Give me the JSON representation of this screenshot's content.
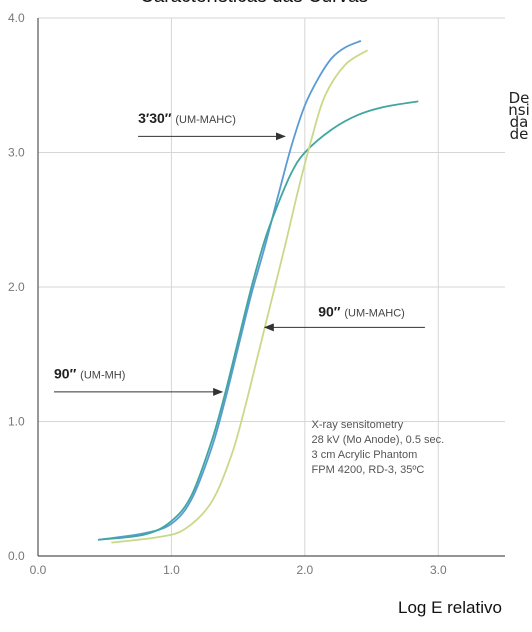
{
  "chart_data": {
    "type": "line",
    "title": "Características das Curvas",
    "xlabel": "Log E relativo",
    "ylabel": "Densidade",
    "xlim": [
      0,
      3.5
    ],
    "ylim": [
      0,
      4.0
    ],
    "x_ticks": [
      "0.0",
      "1.0",
      "2.0",
      "3.0"
    ],
    "y_ticks": [
      "0.0",
      "1.0",
      "2.0",
      "3.0",
      "4.0"
    ],
    "grid": true,
    "colors": {
      "blue": "#5b9bd5",
      "teal": "#3fa6a0",
      "yellow": "#c9d98a",
      "grid": "#d6d6d6"
    },
    "series": [
      {
        "color": "#5b9bd5",
        "x": [
          0.45,
          0.8,
          1.0,
          1.15,
          1.3,
          1.4,
          1.5,
          1.6,
          1.7,
          1.8,
          1.9,
          2.0,
          2.1,
          2.2,
          2.3,
          2.42
        ],
        "y": [
          0.12,
          0.17,
          0.24,
          0.42,
          0.8,
          1.15,
          1.55,
          1.95,
          2.3,
          2.68,
          3.05,
          3.35,
          3.55,
          3.7,
          3.78,
          3.83
        ]
      },
      {
        "color": "#3fa6a0",
        "x": [
          0.45,
          0.8,
          1.0,
          1.15,
          1.3,
          1.4,
          1.5,
          1.6,
          1.7,
          1.8,
          1.9,
          2.0,
          2.2,
          2.4,
          2.6,
          2.85
        ],
        "y": [
          0.12,
          0.16,
          0.26,
          0.45,
          0.85,
          1.2,
          1.6,
          2.0,
          2.35,
          2.62,
          2.85,
          3.0,
          3.17,
          3.28,
          3.34,
          3.38
        ]
      },
      {
        "color": "#c9d98a",
        "x": [
          0.55,
          0.9,
          1.1,
          1.3,
          1.45,
          1.55,
          1.65,
          1.75,
          1.85,
          1.95,
          2.05,
          2.15,
          2.3,
          2.47
        ],
        "y": [
          0.1,
          0.14,
          0.2,
          0.4,
          0.75,
          1.1,
          1.5,
          1.9,
          2.3,
          2.72,
          3.1,
          3.42,
          3.65,
          3.76
        ]
      }
    ],
    "annotations": [
      {
        "bold": "3′30″",
        "text": "(UM-MAHC)",
        "arrow_to": [
          1.85,
          3.12
        ],
        "arrow_from": [
          0.75,
          3.12
        ],
        "label_at": [
          0.75,
          3.22
        ]
      },
      {
        "bold": "90″",
        "text": "(UM-MAHC)",
        "arrow_to": [
          1.7,
          1.7
        ],
        "arrow_from": [
          2.9,
          1.7
        ],
        "label_at": [
          2.1,
          1.78
        ]
      },
      {
        "bold": "90″",
        "text": "(UM-MH)",
        "arrow_to": [
          1.38,
          1.22
        ],
        "arrow_from": [
          0.12,
          1.22
        ],
        "label_at": [
          0.12,
          1.32
        ]
      }
    ],
    "note_lines": [
      "X-ray sensitometry",
      "28 kV (Mo Anode), 0.5 sec.",
      "3 cm Acrylic Phantom",
      "FPM 4200, RD-3, 35ºC"
    ]
  }
}
